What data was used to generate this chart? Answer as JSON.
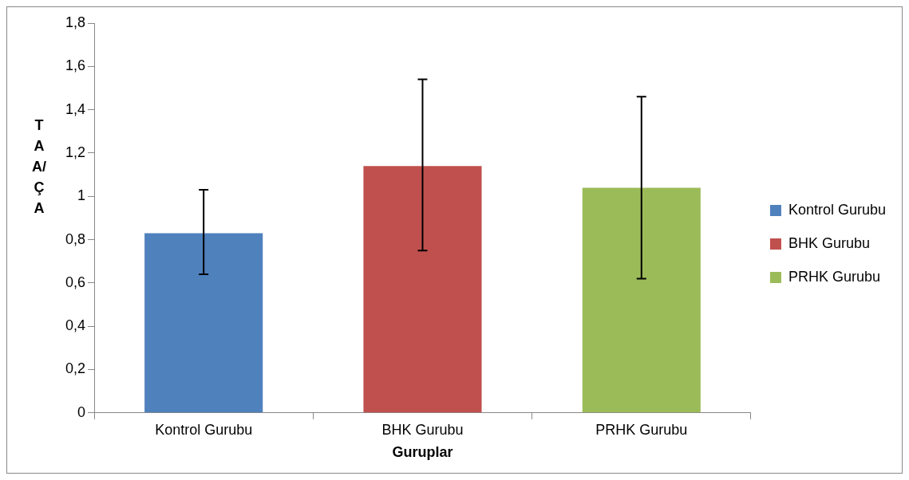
{
  "chart_data": {
    "type": "bar",
    "xlabel": "Guruplar",
    "ylabel": "TAA/ÇA",
    "categories": [
      "Kontrol Gurubu",
      "BHK Gurubu",
      "PRHK Gurubu"
    ],
    "series": [
      {
        "name": "Kontrol Gurubu",
        "color": "#4f81bd",
        "values": [
          0.83,
          null,
          null
        ],
        "errors": [
          [
            0.64,
            1.03
          ],
          null,
          null
        ]
      },
      {
        "name": "BHK Gurubu",
        "color": "#c0504d",
        "values": [
          null,
          1.14,
          null
        ],
        "errors": [
          null,
          [
            0.75,
            1.54
          ],
          null
        ]
      },
      {
        "name": "PRHK Gurubu",
        "color": "#9bbb59",
        "values": [
          null,
          null,
          1.04
        ],
        "errors": [
          null,
          null,
          [
            0.62,
            1.46
          ]
        ]
      }
    ],
    "ylim": [
      0,
      1.8
    ],
    "yticks": [
      {
        "value": 0,
        "label": "0"
      },
      {
        "value": 0.2,
        "label": "0,2"
      },
      {
        "value": 0.4,
        "label": "0,4"
      },
      {
        "value": 0.6,
        "label": "0,6"
      },
      {
        "value": 0.8,
        "label": "0,8"
      },
      {
        "value": 1,
        "label": "1"
      },
      {
        "value": 1.2,
        "label": "1,2"
      },
      {
        "value": 1.4,
        "label": "1,4"
      },
      {
        "value": 1.6,
        "label": "1,6"
      },
      {
        "value": 1.8,
        "label": "1,8"
      }
    ],
    "grid": false,
    "legend": "right"
  }
}
